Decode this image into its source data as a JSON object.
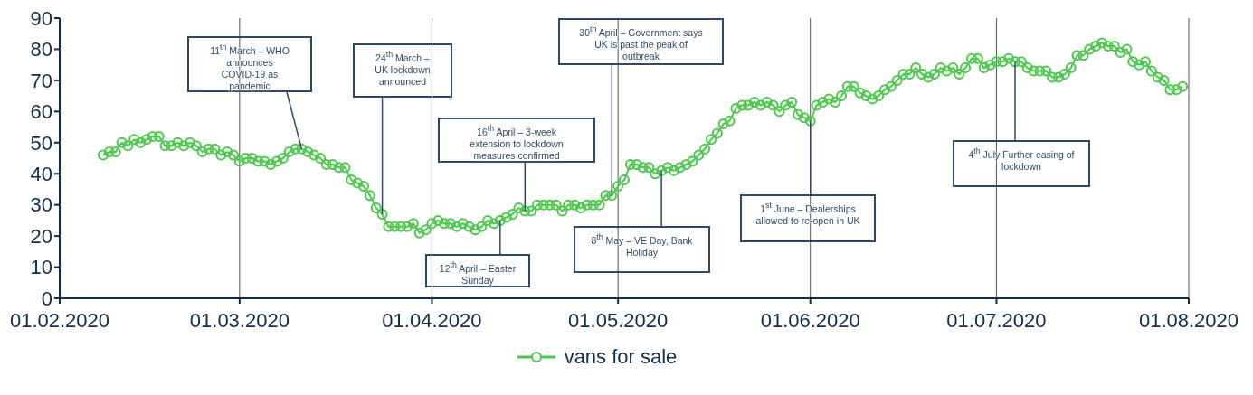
{
  "chart_data": {
    "type": "line",
    "x": [
      "2020-02-08",
      "2020-02-09",
      "2020-02-10",
      "2020-02-11",
      "2020-02-12",
      "2020-02-13",
      "2020-02-14",
      "2020-02-15",
      "2020-02-16",
      "2020-02-17",
      "2020-02-18",
      "2020-02-19",
      "2020-02-20",
      "2020-02-21",
      "2020-02-22",
      "2020-02-23",
      "2020-02-24",
      "2020-02-25",
      "2020-02-26",
      "2020-02-27",
      "2020-02-28",
      "2020-02-29",
      "2020-03-01",
      "2020-03-02",
      "2020-03-03",
      "2020-03-04",
      "2020-03-05",
      "2020-03-06",
      "2020-03-07",
      "2020-03-08",
      "2020-03-09",
      "2020-03-10",
      "2020-03-11",
      "2020-03-12",
      "2020-03-13",
      "2020-03-14",
      "2020-03-15",
      "2020-03-16",
      "2020-03-17",
      "2020-03-18",
      "2020-03-19",
      "2020-03-20",
      "2020-03-21",
      "2020-03-22",
      "2020-03-23",
      "2020-03-24",
      "2020-03-25",
      "2020-03-26",
      "2020-03-27",
      "2020-03-28",
      "2020-03-29",
      "2020-03-30",
      "2020-03-31",
      "2020-04-01",
      "2020-04-02",
      "2020-04-03",
      "2020-04-04",
      "2020-04-05",
      "2020-04-06",
      "2020-04-07",
      "2020-04-08",
      "2020-04-09",
      "2020-04-10",
      "2020-04-11",
      "2020-04-12",
      "2020-04-13",
      "2020-04-14",
      "2020-04-15",
      "2020-04-16",
      "2020-04-17",
      "2020-04-18",
      "2020-04-19",
      "2020-04-20",
      "2020-04-21",
      "2020-04-22",
      "2020-04-23",
      "2020-04-24",
      "2020-04-25",
      "2020-04-26",
      "2020-04-27",
      "2020-04-28",
      "2020-04-29",
      "2020-04-30",
      "2020-05-01",
      "2020-05-02",
      "2020-05-03",
      "2020-05-04",
      "2020-05-05",
      "2020-05-06",
      "2020-05-07",
      "2020-05-08",
      "2020-05-09",
      "2020-05-10",
      "2020-05-11",
      "2020-05-12",
      "2020-05-13",
      "2020-05-14",
      "2020-05-15",
      "2020-05-16",
      "2020-05-17",
      "2020-05-18",
      "2020-05-19",
      "2020-05-20",
      "2020-05-21",
      "2020-05-22",
      "2020-05-23",
      "2020-05-24",
      "2020-05-25",
      "2020-05-26",
      "2020-05-27",
      "2020-05-28",
      "2020-05-29",
      "2020-05-30",
      "2020-05-31",
      "2020-06-01",
      "2020-06-02",
      "2020-06-03",
      "2020-06-04",
      "2020-06-05",
      "2020-06-06",
      "2020-06-07",
      "2020-06-08",
      "2020-06-09",
      "2020-06-10",
      "2020-06-11",
      "2020-06-12",
      "2020-06-13",
      "2020-06-14",
      "2020-06-15",
      "2020-06-16",
      "2020-06-17",
      "2020-06-18",
      "2020-06-19",
      "2020-06-20",
      "2020-06-21",
      "2020-06-22",
      "2020-06-23",
      "2020-06-24",
      "2020-06-25",
      "2020-06-26",
      "2020-06-27",
      "2020-06-28",
      "2020-06-29",
      "2020-06-30",
      "2020-07-01",
      "2020-07-02",
      "2020-07-03",
      "2020-07-04",
      "2020-07-05",
      "2020-07-06",
      "2020-07-07",
      "2020-07-08",
      "2020-07-09",
      "2020-07-10",
      "2020-07-11",
      "2020-07-12",
      "2020-07-13",
      "2020-07-14",
      "2020-07-15",
      "2020-07-16",
      "2020-07-17",
      "2020-07-18",
      "2020-07-19",
      "2020-07-20",
      "2020-07-21",
      "2020-07-22",
      "2020-07-23",
      "2020-07-24",
      "2020-07-25",
      "2020-07-26",
      "2020-07-27",
      "2020-07-28",
      "2020-07-29",
      "2020-07-30",
      "2020-07-31"
    ],
    "series": [
      {
        "name": "vans for sale",
        "color": "#4cc94c",
        "values": [
          46,
          47,
          47,
          50,
          49,
          51,
          50,
          51,
          52,
          52,
          49,
          49,
          50,
          49,
          50,
          49,
          47,
          48,
          48,
          46,
          47,
          46,
          44,
          45,
          45,
          44,
          44,
          43,
          44,
          45,
          47,
          48,
          48,
          47,
          46,
          45,
          43,
          43,
          42,
          42,
          38,
          37,
          36,
          33,
          29,
          27,
          23,
          23,
          23,
          23,
          24,
          21,
          22,
          24,
          25,
          24,
          24,
          23,
          24,
          23,
          22,
          23,
          25,
          24,
          25,
          26,
          27,
          29,
          28,
          28,
          30,
          30,
          30,
          30,
          28,
          30,
          30,
          29,
          30,
          30,
          30,
          33,
          33,
          36,
          38,
          43,
          43,
          42,
          42,
          40,
          41,
          42,
          41,
          42,
          43,
          44,
          46,
          48,
          51,
          53,
          56,
          57,
          61,
          62,
          62,
          63,
          62,
          63,
          62,
          60,
          62,
          63,
          59,
          58,
          57,
          62,
          63,
          64,
          63,
          65,
          68,
          68,
          66,
          65,
          64,
          65,
          67,
          68,
          70,
          72,
          72,
          74,
          72,
          71,
          72,
          74,
          73,
          74,
          72,
          74,
          77,
          77,
          74,
          75,
          76,
          76,
          77,
          76,
          76,
          74,
          73,
          73,
          73,
          71,
          71,
          72,
          74,
          78,
          78,
          80,
          81,
          82,
          81,
          81,
          79,
          80,
          76,
          75,
          76,
          73,
          71,
          70,
          67,
          67,
          68
        ]
      }
    ],
    "xlim": [
      "2020-02-01",
      "2020-08-01"
    ],
    "xticks": [
      {
        "value": "2020-02-01",
        "label": "01.02.2020"
      },
      {
        "value": "2020-03-01",
        "label": "01.03.2020"
      },
      {
        "value": "2020-04-01",
        "label": "01.04.2020"
      },
      {
        "value": "2020-05-01",
        "label": "01.05.2020"
      },
      {
        "value": "2020-06-01",
        "label": "01.06.2020"
      },
      {
        "value": "2020-07-01",
        "label": "01.07.2020"
      },
      {
        "value": "2020-08-01",
        "label": "01.08.2020"
      }
    ],
    "ylim": [
      0,
      90
    ],
    "yticks": [
      0,
      10,
      20,
      30,
      40,
      50,
      60,
      70,
      80,
      90
    ],
    "grid": "x",
    "legend": "bottom",
    "marker": "circle",
    "line_style": "solid",
    "annotations": [
      {
        "text": "11$^{th}$ March – WHO announces COVID-19 as pandemic",
        "x": "2020-03-11",
        "y": 48
      },
      {
        "text": "24$^{th}$ March – UK lockdown announced",
        "x": "2020-03-24",
        "y": 27
      },
      {
        "text": "12$^{th}$ April – Easter Sunday",
        "x": "2020-04-12",
        "y": 25
      },
      {
        "text": "16$^{th}$ April – 3-week extension to lockdown measures confirmed",
        "x": "2020-04-16",
        "y": 28
      },
      {
        "text": "30$^{th}$ April – Government says UK is past the peak of outbreak",
        "x": "2020-04-30",
        "y": 33
      },
      {
        "text": "8$^{th}$ May – VE Day, Bank Holiday",
        "x": "2020-05-08",
        "y": 41
      },
      {
        "text": "1$^{st}$ June – Dealerships allowed to re-open in UK",
        "x": "2020-06-01",
        "y": 57
      },
      {
        "text": "4$^{th}$ July  Further easing of lockdown",
        "x": "2020-07-04",
        "y": 76
      }
    ]
  }
}
